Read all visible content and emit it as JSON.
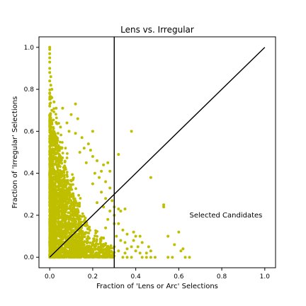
{
  "chart_data": {
    "type": "scatter",
    "title": "Lens vs. Irregular",
    "xlabel": "Fraction of 'Lens or Arc' Selections",
    "ylabel": "Fraction of 'Irregular' Selections",
    "xlim": [
      -0.05,
      1.05
    ],
    "ylim": [
      -0.05,
      1.05
    ],
    "xticks": [
      "0.0",
      "0.2",
      "0.4",
      "0.6",
      "0.8",
      "1.0"
    ],
    "yticks": [
      "0.0",
      "0.2",
      "0.4",
      "0.6",
      "0.8",
      "1.0"
    ],
    "grid": false,
    "colors": {
      "points": "#bfbf00",
      "lines": "#000000"
    },
    "reference_lines": [
      {
        "kind": "vertical",
        "x": 0.3
      },
      {
        "kind": "diagonal",
        "from": [
          0,
          0
        ],
        "to": [
          1,
          1
        ]
      }
    ],
    "annotations": [
      {
        "text": "Selected Candidates",
        "x": 0.65,
        "y": 0.2
      }
    ],
    "cluster": {
      "description": "dense cloud of points concentrated near x=0, spreading up to y~1 along x=0 and out to x~0.3 near y=0",
      "x_range": [
        0.0,
        0.3
      ],
      "y_range": [
        0.0,
        1.0
      ]
    },
    "points": [
      [
        0.0,
        1.0
      ],
      [
        0.0,
        0.99
      ],
      [
        0.0,
        0.97
      ],
      [
        0.0,
        0.95
      ],
      [
        0.0,
        0.93
      ],
      [
        0.0,
        0.9
      ],
      [
        0.0,
        0.88
      ],
      [
        0.005,
        0.86
      ],
      [
        0.0,
        0.84
      ],
      [
        0.005,
        0.82
      ],
      [
        0.01,
        0.8
      ],
      [
        0.0,
        0.78
      ],
      [
        0.01,
        0.76
      ],
      [
        0.02,
        0.74
      ],
      [
        0.0,
        0.72
      ],
      [
        0.03,
        0.71
      ],
      [
        0.01,
        0.7
      ],
      [
        0.06,
        0.71
      ],
      [
        0.12,
        0.73
      ],
      [
        0.1,
        0.68
      ],
      [
        0.13,
        0.66
      ],
      [
        0.08,
        0.64
      ],
      [
        0.05,
        0.62
      ],
      [
        0.09,
        0.6
      ],
      [
        0.12,
        0.59
      ],
      [
        0.2,
        0.6
      ],
      [
        0.15,
        0.57
      ],
      [
        0.18,
        0.54
      ],
      [
        0.16,
        0.52
      ],
      [
        0.19,
        0.51
      ],
      [
        0.14,
        0.5
      ],
      [
        0.2,
        0.48
      ],
      [
        0.22,
        0.46
      ],
      [
        0.17,
        0.45
      ],
      [
        0.25,
        0.44
      ],
      [
        0.24,
        0.41
      ],
      [
        0.21,
        0.4
      ],
      [
        0.27,
        0.45
      ],
      [
        0.28,
        0.41
      ],
      [
        0.23,
        0.38
      ],
      [
        0.26,
        0.36
      ],
      [
        0.2,
        0.35
      ],
      [
        0.28,
        0.33
      ],
      [
        0.24,
        0.31
      ],
      [
        0.26,
        0.28
      ],
      [
        0.29,
        0.27
      ],
      [
        0.22,
        0.26
      ],
      [
        0.25,
        0.24
      ],
      [
        0.28,
        0.22
      ],
      [
        0.3,
        0.2
      ],
      [
        0.27,
        0.18
      ],
      [
        0.3,
        0.16
      ],
      [
        0.26,
        0.14
      ],
      [
        0.3,
        0.24
      ],
      [
        0.32,
        0.23
      ],
      [
        0.33,
        0.22
      ],
      [
        0.35,
        0.23
      ],
      [
        0.32,
        0.16
      ],
      [
        0.34,
        0.13
      ],
      [
        0.36,
        0.11
      ],
      [
        0.31,
        0.1
      ],
      [
        0.33,
        0.08
      ],
      [
        0.35,
        0.07
      ],
      [
        0.38,
        0.05
      ],
      [
        0.36,
        0.04
      ],
      [
        0.32,
        0.03
      ],
      [
        0.35,
        0.02
      ],
      [
        0.3,
        0.05
      ],
      [
        0.34,
        0.0
      ],
      [
        0.36,
        0.0
      ],
      [
        0.38,
        0.0
      ],
      [
        0.39,
        0.12
      ],
      [
        0.4,
        0.1
      ],
      [
        0.39,
        0.08
      ],
      [
        0.42,
        0.1
      ],
      [
        0.41,
        0.05
      ],
      [
        0.4,
        0.03
      ],
      [
        0.42,
        0.02
      ],
      [
        0.43,
        0.0
      ],
      [
        0.45,
        0.0
      ],
      [
        0.47,
        0.0
      ],
      [
        0.49,
        0.0
      ],
      [
        0.46,
        0.05
      ],
      [
        0.47,
        0.03
      ],
      [
        0.43,
        0.07
      ],
      [
        0.45,
        0.02
      ],
      [
        0.32,
        0.49
      ],
      [
        0.38,
        0.6
      ],
      [
        0.47,
        0.38
      ],
      [
        0.53,
        0.24
      ],
      [
        0.53,
        0.25
      ],
      [
        0.55,
        0.1
      ],
      [
        0.58,
        0.06
      ],
      [
        0.6,
        0.12
      ],
      [
        0.62,
        0.04
      ],
      [
        0.61,
        0.03
      ],
      [
        0.63,
        0.0
      ],
      [
        0.65,
        0.0
      ],
      [
        0.57,
        0.0
      ],
      [
        0.55,
        0.0
      ]
    ]
  }
}
